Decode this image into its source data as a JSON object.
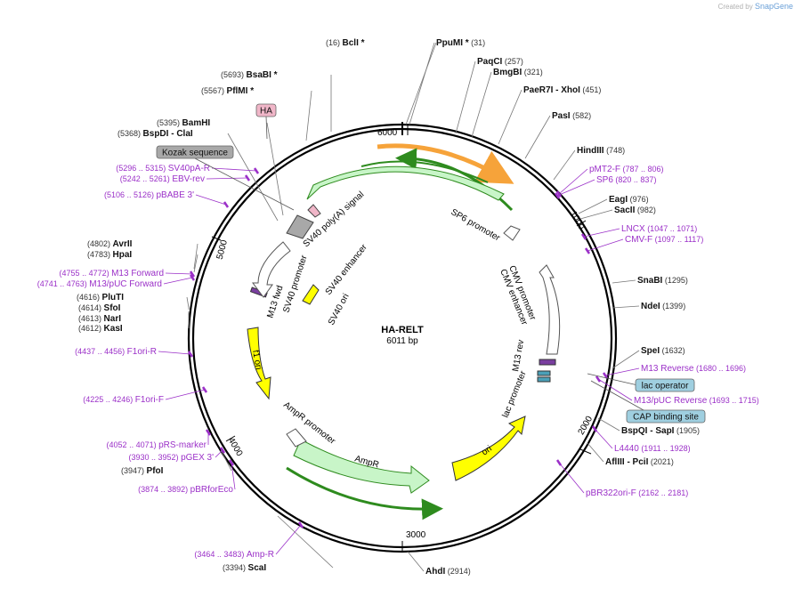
{
  "branding": {
    "created_by": "Created by",
    "product": "SnapGene"
  },
  "plasmid": {
    "name": "HA-RELT",
    "size_label": "6011 bp",
    "length": 6011
  },
  "colors": {
    "site": "#111111",
    "primer": "#9b30c8",
    "feature_yellow": "#ffff00",
    "feature_green": "#c8f5c8",
    "arrow_orange": "#f6a33a",
    "arrow_green": "#2e8b1e",
    "box_gray": "#a8a8a8",
    "box_blue": "#9fcfe0",
    "box_pink": "#f0b6c8"
  },
  "ticks": [
    {
      "bp": 1000,
      "label": "1000"
    },
    {
      "bp": 2000,
      "label": "2000"
    },
    {
      "bp": 3000,
      "label": "3000"
    },
    {
      "bp": 4000,
      "label": "4000"
    },
    {
      "bp": 5000,
      "label": "5000"
    },
    {
      "bp": 6000,
      "label": "6000"
    }
  ],
  "sites": [
    {
      "name": "BclI *",
      "pos": "(16)",
      "num_left": true
    },
    {
      "name": "PpuMI *",
      "pos": "(31)"
    },
    {
      "name": "PaqCI",
      "pos": "(257)"
    },
    {
      "name": "BmgBI",
      "pos": "(321)"
    },
    {
      "name": "PaeR7I",
      "extra": " - XhoI",
      "pos": "(451)"
    },
    {
      "name": "PasI",
      "pos": "(582)"
    },
    {
      "name": "HindIII",
      "pos": "(748)"
    },
    {
      "name": "EagI",
      "pos": "(976)"
    },
    {
      "name": "SacII",
      "pos": "(982)"
    },
    {
      "name": "SnaBI",
      "pos": "(1295)"
    },
    {
      "name": "NdeI",
      "pos": "(1399)"
    },
    {
      "name": "SpeI",
      "pos": "(1632)"
    },
    {
      "name": "BspQI",
      "extra": " - SapI",
      "pos": "(1905)"
    },
    {
      "name": "AflIII",
      "extra": " - PciI",
      "pos": "(2021)"
    },
    {
      "name": "AhdI",
      "pos": "(2914)"
    },
    {
      "name": "ScaI",
      "pos": "(3394)",
      "num_left": true
    },
    {
      "name": "PfoI",
      "pos": "(3947)",
      "num_left": true
    },
    {
      "name": "KasI",
      "pos": "(4612)",
      "num_left": true
    },
    {
      "name": "NarI",
      "pos": "(4613)",
      "num_left": true
    },
    {
      "name": "SfoI",
      "pos": "(4614)",
      "num_left": true
    },
    {
      "name": "PluTI",
      "pos": "(4616)",
      "num_left": true
    },
    {
      "name": "HpaI",
      "pos": "(4783)",
      "num_left": true
    },
    {
      "name": "AvrII",
      "pos": "(4802)",
      "num_left": true
    },
    {
      "name": "BspDI",
      "extra": " - ClaI",
      "pos": "(5368)",
      "num_left": true
    },
    {
      "name": "BamHI",
      "pos": "(5395)",
      "num_left": true
    },
    {
      "name": "PflMI *",
      "pos": "(5567)",
      "num_left": true
    },
    {
      "name": "BsaBI *",
      "pos": "(5693)",
      "num_left": true
    }
  ],
  "primers": [
    {
      "name": "pMT2-F",
      "range": "(787 .. 806)"
    },
    {
      "name": "SP6",
      "range": "(820 .. 837)"
    },
    {
      "name": "LNCX",
      "range": "(1047 .. 1071)"
    },
    {
      "name": "CMV-F",
      "range": "(1097 .. 1117)"
    },
    {
      "name": "M13 Reverse",
      "range": "(1680 .. 1696)"
    },
    {
      "name": "M13/pUC Reverse",
      "range": "(1693 .. 1715)"
    },
    {
      "name": "L4440",
      "range": "(1911 .. 1928)"
    },
    {
      "name": "pBR322ori-F",
      "range": "(2162 .. 2181)"
    },
    {
      "name": "Amp-R",
      "range": "(3464 .. 3483)"
    },
    {
      "name": "pBRforEco",
      "range": "(3874 .. 3892)"
    },
    {
      "name": "pGEX 3'",
      "range": "(3930 .. 3952)"
    },
    {
      "name": "pRS-marker",
      "range": "(4052 .. 4071)"
    },
    {
      "name": "F1ori-F",
      "range": "(4225 .. 4246)"
    },
    {
      "name": "F1ori-R",
      "range": "(4437 .. 4456)"
    },
    {
      "name": "M13/pUC Forward",
      "range": "(4741 .. 4763)"
    },
    {
      "name": "M13 Forward",
      "range": "(4755 .. 4772)"
    },
    {
      "name": "pBABE 3'",
      "range": "(5106 .. 5126)"
    },
    {
      "name": "EBV-rev",
      "range": "(5242 .. 5261)"
    },
    {
      "name": "SV40pA-R",
      "range": "(5296 .. 5315)"
    }
  ],
  "boxed_features": [
    {
      "name": "HA",
      "style": "pink"
    },
    {
      "name": "Kozak sequence",
      "style": "gray"
    },
    {
      "name": "lac operator",
      "style": "blue"
    },
    {
      "name": "CAP binding site",
      "style": "blue"
    }
  ],
  "inner_features": [
    {
      "name": "SP6 promoter"
    },
    {
      "name": "CMV promoter"
    },
    {
      "name": "CMV enhancer"
    },
    {
      "name": "M13 rev"
    },
    {
      "name": "lac promoter"
    },
    {
      "name": "ori"
    },
    {
      "name": "AmpR"
    },
    {
      "name": "AmpR promoter"
    },
    {
      "name": "f1 ori"
    },
    {
      "name": "M13 fwd"
    },
    {
      "name": "SV40 promoter"
    },
    {
      "name": "SV40 enhancer"
    },
    {
      "name": "SV40 ori"
    },
    {
      "name": "SV40 poly(A) signal"
    }
  ]
}
